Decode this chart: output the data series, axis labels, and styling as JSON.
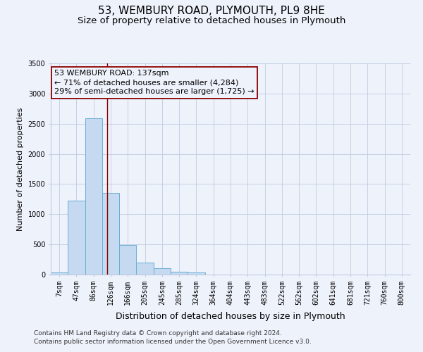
{
  "title": "53, WEMBURY ROAD, PLYMOUTH, PL9 8HE",
  "subtitle": "Size of property relative to detached houses in Plymouth",
  "xlabel": "Distribution of detached houses by size in Plymouth",
  "ylabel": "Number of detached properties",
  "bar_labels": [
    "7sqm",
    "47sqm",
    "86sqm",
    "126sqm",
    "166sqm",
    "205sqm",
    "245sqm",
    "285sqm",
    "324sqm",
    "364sqm",
    "404sqm",
    "443sqm",
    "483sqm",
    "522sqm",
    "562sqm",
    "602sqm",
    "641sqm",
    "681sqm",
    "721sqm",
    "760sqm",
    "800sqm"
  ],
  "bar_values": [
    40,
    1230,
    2590,
    1350,
    495,
    195,
    110,
    50,
    35,
    0,
    0,
    0,
    0,
    0,
    0,
    0,
    0,
    0,
    0,
    0,
    0
  ],
  "bar_color": "#c5d9f0",
  "bar_edge_color": "#6baed6",
  "property_label": "53 WEMBURY ROAD: 137sqm",
  "annotation_line1": "← 71% of detached houses are smaller (4,284)",
  "annotation_line2": "29% of semi-detached houses are larger (1,725) →",
  "vline_color": "#8b0000",
  "vline_x": 2.78,
  "ylim": [
    0,
    3500
  ],
  "yticks": [
    0,
    500,
    1000,
    1500,
    2000,
    2500,
    3000,
    3500
  ],
  "footer_line1": "Contains HM Land Registry data © Crown copyright and database right 2024.",
  "footer_line2": "Contains public sector information licensed under the Open Government Licence v3.0.",
  "bg_color": "#eef2fb",
  "grid_color": "#c0cce0",
  "title_fontsize": 11,
  "subtitle_fontsize": 9.5,
  "xlabel_fontsize": 9,
  "ylabel_fontsize": 8,
  "footer_fontsize": 6.5,
  "tick_fontsize": 7,
  "ann_fontsize": 8
}
